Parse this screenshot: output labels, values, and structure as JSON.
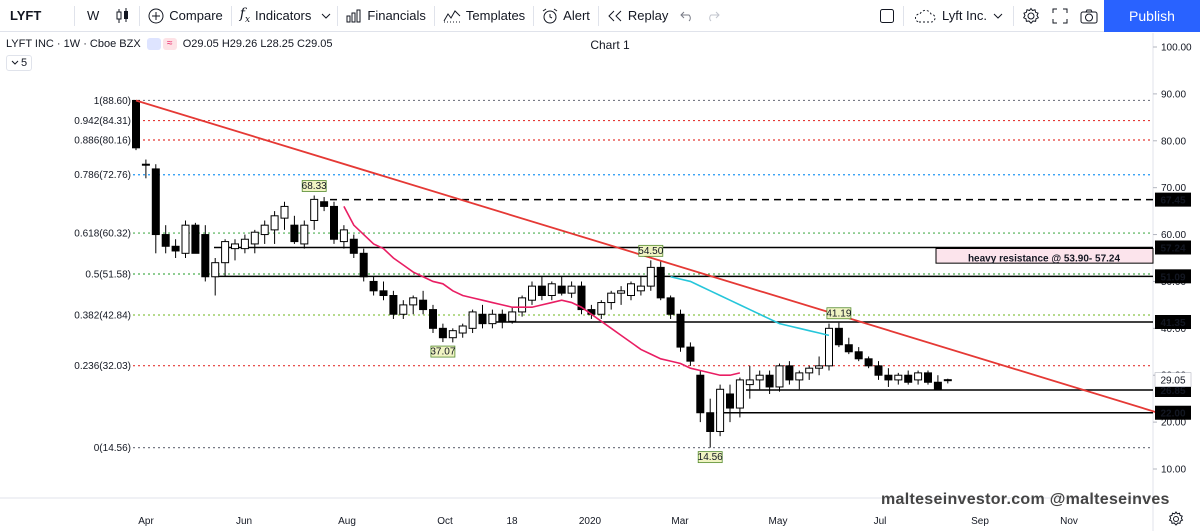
{
  "toolbar": {
    "symbol": "LYFT",
    "interval": "W",
    "compare": "Compare",
    "indicators": "Indicators",
    "financials": "Financials",
    "templates": "Templates",
    "alert": "Alert",
    "replay": "Replay",
    "layout_name": "Lyft Inc.",
    "publish": "Publish"
  },
  "legend": {
    "title": "LYFT INC · 1W · Cboe BZX",
    "ohlc": "O29.05 H29.26 L28.25 C29.05",
    "collapsed_count": "5"
  },
  "chart_title": "Chart 1",
  "watermark": "malteseinvestor.com @malteseinves",
  "colors": {
    "fib_red": "#e53935",
    "fib_blue": "#2196f3",
    "fib_green": "#4caf50",
    "fib_lime": "#8bc34a",
    "fib_gray": "#787b86",
    "trendline": "#e53935",
    "ma_pink": "#e91e63",
    "ma_cyan": "#26c6da",
    "publish_blue": "#2962ff"
  },
  "chart_data": {
    "type": "candlestick",
    "symbol": "LYFT",
    "interval": "1W",
    "ylim": [
      7,
      104
    ],
    "y_ticks": [
      10,
      20,
      30,
      40,
      50,
      60,
      70,
      80,
      90,
      100
    ],
    "y_tick_labels": [
      "10.00",
      "20.00",
      "30.00",
      "40.00",
      "50.00",
      "60.00",
      "70.00",
      "80.00",
      "90.00",
      "100.00"
    ],
    "x_labels": [
      "Apr",
      "Jun",
      "Aug",
      "Oct",
      "18",
      "2020",
      "Mar",
      "May",
      "Jul",
      "Sep",
      "Nov"
    ],
    "candles": [
      [
        88.6,
        88.6,
        78.0,
        78.5
      ],
      [
        75.0,
        76.0,
        72.0,
        75.0
      ],
      [
        74.0,
        75.0,
        56.0,
        60.0
      ],
      [
        60.0,
        62.0,
        56.0,
        57.5
      ],
      [
        57.5,
        59.0,
        55.0,
        56.5
      ],
      [
        56.0,
        63.0,
        55.0,
        62.0
      ],
      [
        62.0,
        62.5,
        56.0,
        56.0
      ],
      [
        60.0,
        62.0,
        50.0,
        51.0
      ],
      [
        51.0,
        55.0,
        47.0,
        54.0
      ],
      [
        54.0,
        59.0,
        51.0,
        58.5
      ],
      [
        57.0,
        59.0,
        54.5,
        58.0
      ],
      [
        57.0,
        60.0,
        56.0,
        59.0
      ],
      [
        58.0,
        61.0,
        56.0,
        60.5
      ],
      [
        60.0,
        63.0,
        58.0,
        62.0
      ],
      [
        61.0,
        65.0,
        58.0,
        64.0
      ],
      [
        63.5,
        67.0,
        61.0,
        66.0
      ],
      [
        62.0,
        64.0,
        58.0,
        58.5
      ],
      [
        58.0,
        63.0,
        57.0,
        62.0
      ],
      [
        63.0,
        68.33,
        61.0,
        67.5
      ],
      [
        67.0,
        68.0,
        65.0,
        66.0
      ],
      [
        66.0,
        67.0,
        58.0,
        59.0
      ],
      [
        58.5,
        62.0,
        57.0,
        61.0
      ],
      [
        59.0,
        60.0,
        55.0,
        56.0
      ],
      [
        56.0,
        57.0,
        50.0,
        51.0
      ],
      [
        50.0,
        51.0,
        47.0,
        48.0
      ],
      [
        48.0,
        50.0,
        46.0,
        47.0
      ],
      [
        47.0,
        48.0,
        42.0,
        43.0
      ],
      [
        43.0,
        46.0,
        42.0,
        45.0
      ],
      [
        45.0,
        47.0,
        43.0,
        46.5
      ],
      [
        46.0,
        48.0,
        43.0,
        44.0
      ],
      [
        44.0,
        45.0,
        39.0,
        40.0
      ],
      [
        40.0,
        41.0,
        37.07,
        38.0
      ],
      [
        38.0,
        40.0,
        37.0,
        39.5
      ],
      [
        39.0,
        41.0,
        38.0,
        40.5
      ],
      [
        40.0,
        44.0,
        39.0,
        43.5
      ],
      [
        43.0,
        45.0,
        40.0,
        41.0
      ],
      [
        41.0,
        44.0,
        40.0,
        43.0
      ],
      [
        43.0,
        44.0,
        40.0,
        41.5
      ],
      [
        41.5,
        44.5,
        41.0,
        43.5
      ],
      [
        43.5,
        47.0,
        42.5,
        46.5
      ],
      [
        46.0,
        50.0,
        45.0,
        49.0
      ],
      [
        49.0,
        51.0,
        46.0,
        47.0
      ],
      [
        47.0,
        50.0,
        46.0,
        49.5
      ],
      [
        49.0,
        51.0,
        47.0,
        47.5
      ],
      [
        47.5,
        50.0,
        46.5,
        49.0
      ],
      [
        49.0,
        50.0,
        43.0,
        44.0
      ],
      [
        44.0,
        45.0,
        42.0,
        43.0
      ],
      [
        43.0,
        46.0,
        42.0,
        45.5
      ],
      [
        45.5,
        48.0,
        44.0,
        47.5
      ],
      [
        47.5,
        49.0,
        45.0,
        48.0
      ],
      [
        47.0,
        50.0,
        46.0,
        49.5
      ],
      [
        48.0,
        51.0,
        47.0,
        49.0
      ],
      [
        49.0,
        54.5,
        48.0,
        53.0
      ],
      [
        53.0,
        54.5,
        46.0,
        46.5
      ],
      [
        46.5,
        47.0,
        42.0,
        43.0
      ],
      [
        43.0,
        44.0,
        35.0,
        36.0
      ],
      [
        36.0,
        37.0,
        32.0,
        33.0
      ],
      [
        30.0,
        31.0,
        20.0,
        22.0
      ],
      [
        22.0,
        25.0,
        14.56,
        18.0
      ],
      [
        18.0,
        28.0,
        17.0,
        27.0
      ],
      [
        26.0,
        28.0,
        20.0,
        23.0
      ],
      [
        23.0,
        29.5,
        21.0,
        29.0
      ],
      [
        28.0,
        32.0,
        25.0,
        29.0
      ],
      [
        29.0,
        31.0,
        27.0,
        30.0
      ],
      [
        30.0,
        31.0,
        26.0,
        27.5
      ],
      [
        27.5,
        32.5,
        26.5,
        32.0
      ],
      [
        32.0,
        33.0,
        28.0,
        29.0
      ],
      [
        29.0,
        31.0,
        27.0,
        30.5
      ],
      [
        30.5,
        32.0,
        29.0,
        31.5
      ],
      [
        31.5,
        34.0,
        30.0,
        32.0
      ],
      [
        32.0,
        41.0,
        31.0,
        40.0
      ],
      [
        40.0,
        41.19,
        36.0,
        36.5
      ],
      [
        36.5,
        38.0,
        34.5,
        35.0
      ],
      [
        35.0,
        36.0,
        33.0,
        33.5
      ],
      [
        33.5,
        34.0,
        31.5,
        32.0
      ],
      [
        32.0,
        33.0,
        29.0,
        30.0
      ],
      [
        30.0,
        31.5,
        27.5,
        29.0
      ],
      [
        29.0,
        30.5,
        28.0,
        30.0
      ],
      [
        30.0,
        31.0,
        28.0,
        28.5
      ],
      [
        29.0,
        31.0,
        28.0,
        30.5
      ],
      [
        30.5,
        31.0,
        28.0,
        28.5
      ],
      [
        28.5,
        30.0,
        27.5,
        27.0
      ],
      [
        29.05,
        29.26,
        28.25,
        29.05
      ]
    ],
    "ma_pink": [
      66,
      62,
      60,
      58,
      57,
      55,
      53.5,
      52,
      51,
      50,
      49.5,
      48,
      47,
      46.5,
      46,
      45.5,
      45,
      44.5,
      44.5,
      44.5,
      45,
      45.5,
      46,
      45.5,
      44.5,
      43,
      41.5,
      40,
      38.5,
      37,
      35.5,
      34.5,
      33.5,
      33,
      32.5,
      31.5,
      31,
      30.5,
      30,
      30,
      30.5
    ],
    "ma_cyan": [
      51,
      50.5,
      50,
      49,
      48,
      47,
      46,
      45,
      44,
      43,
      42,
      41,
      40.5,
      40,
      39.5,
      39,
      38.5
    ],
    "fib_levels": [
      {
        "label": "1(88.60)",
        "value": 88.6,
        "color": "#787b86"
      },
      {
        "label": "0.942(84.31)",
        "value": 84.31,
        "color": "#e53935"
      },
      {
        "label": "0.886(80.16)",
        "value": 80.16,
        "color": "#e53935"
      },
      {
        "label": "0.786(72.76)",
        "value": 72.76,
        "color": "#2196f3"
      },
      {
        "label": "0.618(60.32)",
        "value": 60.32,
        "color": "#4caf50"
      },
      {
        "label": "0.5(51.58)",
        "value": 51.58,
        "color": "#4caf50"
      },
      {
        "label": "0.382(42.84)",
        "value": 42.84,
        "color": "#8bc34a"
      },
      {
        "label": "0.236(32.03)",
        "value": 32.03,
        "color": "#e53935"
      },
      {
        "label": "0(14.56)",
        "value": 14.56,
        "color": "#787b86"
      }
    ],
    "horizontal_lines": [
      {
        "value": 67.45,
        "label": "67.45",
        "style": "dashed"
      },
      {
        "value": 57.24,
        "label": "57.24",
        "style": "solid"
      },
      {
        "value": 51.09,
        "label": "51.09",
        "style": "solid"
      },
      {
        "value": 41.35,
        "label": "41.35",
        "style": "solid"
      },
      {
        "value": 26.85,
        "label": "26.85",
        "style": "solid"
      },
      {
        "value": 22.0,
        "label": "22.00",
        "style": "solid"
      }
    ],
    "last_price": {
      "value": 29.05,
      "label": "29.05"
    },
    "trendline": {
      "from": [
        0,
        88.6
      ],
      "to": [
        104,
        21.5
      ]
    },
    "annotations": [
      {
        "text": "68.33",
        "candle": 18,
        "value": 68.33,
        "pos": "above"
      },
      {
        "text": "54.50",
        "candle": 52,
        "value": 54.5,
        "pos": "above"
      },
      {
        "text": "41.19",
        "candle": 71,
        "value": 41.19,
        "pos": "above"
      },
      {
        "text": "37.07",
        "candle": 31,
        "value": 37.07,
        "pos": "below"
      },
      {
        "text": "14.56",
        "candle": 58,
        "value": 14.56,
        "pos": "below"
      }
    ],
    "text_note": "heavy resistance @ 53.90- 57.24"
  }
}
